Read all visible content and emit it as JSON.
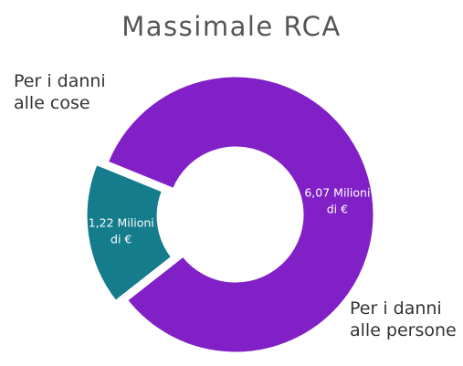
{
  "chart_data": {
    "type": "pie",
    "title": "Massimale RCA",
    "slices": [
      {
        "category_line1": "Per i danni",
        "category_line2": "alle cose",
        "value": 1.22,
        "value_line1": "1,22 Milioni",
        "value_line2": "di €",
        "color": "#157c8c",
        "exploded": true
      },
      {
        "category_line1": "Per i danni",
        "category_line2": "alle persone",
        "value": 6.07,
        "value_line1": "6,07 Milioni",
        "value_line2": "di €",
        "color": "#8120c7",
        "exploded": false
      }
    ],
    "donut": true,
    "legend": "none"
  }
}
